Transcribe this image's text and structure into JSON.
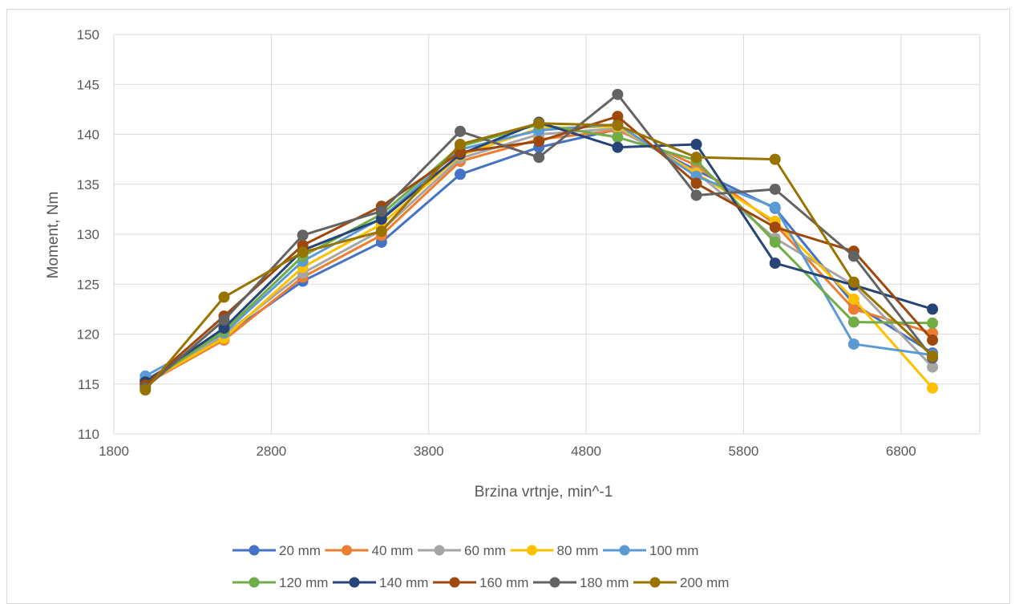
{
  "chart_data": {
    "type": "line",
    "title": "",
    "xlabel": "Brzina vrtnje, min^-1",
    "ylabel": "Moment, Nm",
    "xlim": [
      1800,
      7300
    ],
    "ylim": [
      110,
      150
    ],
    "xticks": [
      1800,
      2800,
      3800,
      4800,
      5800,
      6800
    ],
    "yticks": [
      110,
      115,
      120,
      125,
      130,
      135,
      140,
      145,
      150
    ],
    "grid": true,
    "legend_position": "bottom",
    "x": [
      2000,
      2500,
      3000,
      3500,
      4000,
      4500,
      5000,
      5500,
      6000,
      6500,
      7000
    ],
    "series": [
      {
        "name": "20 mm",
        "color": "#4472C4",
        "values": [
          115.4,
          119.8,
          125.3,
          129.2,
          136.0,
          138.7,
          140.5,
          136.4,
          132.6,
          123.0,
          118.1
        ]
      },
      {
        "name": "40 mm",
        "color": "#ED7D31",
        "values": [
          115.0,
          119.4,
          125.7,
          129.9,
          137.3,
          139.5,
          140.4,
          136.9,
          131.0,
          122.5,
          120.1
        ]
      },
      {
        "name": "60 mm",
        "color": "#A5A5A5",
        "values": [
          115.3,
          119.9,
          126.1,
          130.4,
          137.6,
          140.0,
          140.6,
          136.2,
          129.6,
          124.9,
          116.7
        ]
      },
      {
        "name": "80 mm",
        "color": "#FFC000",
        "values": [
          115.1,
          119.6,
          126.7,
          131.0,
          137.9,
          140.6,
          140.8,
          136.1,
          131.3,
          123.5,
          114.6
        ]
      },
      {
        "name": "100 mm",
        "color": "#5B9BD5",
        "values": [
          115.8,
          120.1,
          127.3,
          131.6,
          138.5,
          140.4,
          141.0,
          135.8,
          132.7,
          119.0,
          117.9
        ]
      },
      {
        "name": "120 mm",
        "color": "#70AD47",
        "values": [
          115.0,
          120.3,
          127.8,
          132.0,
          138.8,
          141.0,
          139.7,
          137.4,
          129.2,
          121.2,
          121.1
        ]
      },
      {
        "name": "140 mm",
        "color": "#264478",
        "values": [
          115.2,
          120.6,
          128.4,
          131.5,
          138.0,
          141.2,
          138.7,
          139.0,
          127.1,
          124.9,
          122.5
        ]
      },
      {
        "name": "160 mm",
        "color": "#9E480E",
        "values": [
          114.9,
          121.8,
          128.9,
          132.8,
          138.2,
          139.3,
          141.8,
          135.1,
          130.7,
          128.3,
          119.4
        ]
      },
      {
        "name": "180 mm",
        "color": "#636363",
        "values": [
          114.6,
          121.4,
          129.9,
          132.3,
          140.3,
          137.7,
          144.0,
          133.9,
          134.5,
          127.8,
          117.6
        ]
      },
      {
        "name": "200 mm",
        "color": "#997300",
        "values": [
          114.4,
          123.7,
          128.2,
          130.3,
          139.0,
          141.1,
          140.9,
          137.7,
          137.5,
          125.2,
          117.8
        ]
      }
    ]
  }
}
